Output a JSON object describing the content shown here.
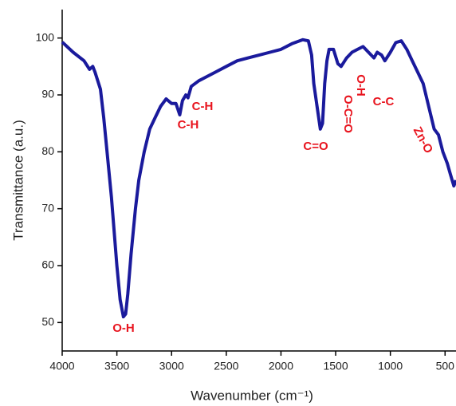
{
  "chart_data": {
    "type": "line",
    "x_label": "Wavenumber (cm⁻¹)",
    "y_label": "Transmittance (a.u.)",
    "color": "#1a1a9c",
    "xlim": [
      4000,
      400
    ],
    "ylim": [
      45,
      105
    ],
    "xticks": [
      4000,
      3500,
      3000,
      2500,
      2000,
      1500,
      1000,
      500
    ],
    "yticks": [
      50,
      60,
      70,
      80,
      90,
      100
    ],
    "annotations": [
      "O-H",
      "C-H",
      "C-H",
      "C=O",
      "O-C=O",
      "O-H",
      "C-C",
      "Zn-O"
    ],
    "x": [
      4000,
      3900,
      3800,
      3750,
      3720,
      3700,
      3650,
      3620,
      3600,
      3550,
      3500,
      3470,
      3440,
      3420,
      3400,
      3370,
      3330,
      3300,
      3250,
      3200,
      3150,
      3100,
      3050,
      3000,
      2960,
      2925,
      2900,
      2870,
      2850,
      2820,
      2750,
      2600,
      2500,
      2400,
      2300,
      2200,
      2100,
      2000,
      1900,
      1800,
      1750,
      1720,
      1700,
      1670,
      1640,
      1620,
      1600,
      1580,
      1560,
      1520,
      1480,
      1450,
      1400,
      1350,
      1300,
      1250,
      1200,
      1150,
      1120,
      1080,
      1050,
      1000,
      950,
      900,
      850,
      800,
      750,
      700,
      650,
      600,
      560,
      520,
      480,
      450,
      420,
      400
    ],
    "values": [
      99.3,
      97.5,
      96,
      94.5,
      95,
      94,
      91,
      86,
      82,
      72,
      60,
      54,
      51,
      51.5,
      55,
      62,
      70,
      75,
      80,
      84,
      86,
      88,
      89.3,
      88.5,
      88.5,
      86.5,
      89,
      90,
      89.5,
      91.5,
      92.5,
      94,
      95,
      96,
      96.5,
      97,
      97.5,
      98,
      99,
      99.7,
      99.5,
      97,
      92,
      88,
      84,
      85,
      92,
      96,
      98,
      98,
      95.5,
      95,
      96.5,
      97.5,
      98,
      98.5,
      97.5,
      96.5,
      97.5,
      97,
      96,
      97.5,
      99.2,
      99.5,
      98,
      96,
      94,
      92,
      88,
      84,
      83,
      80,
      78,
      76,
      74,
      75
    ]
  }
}
